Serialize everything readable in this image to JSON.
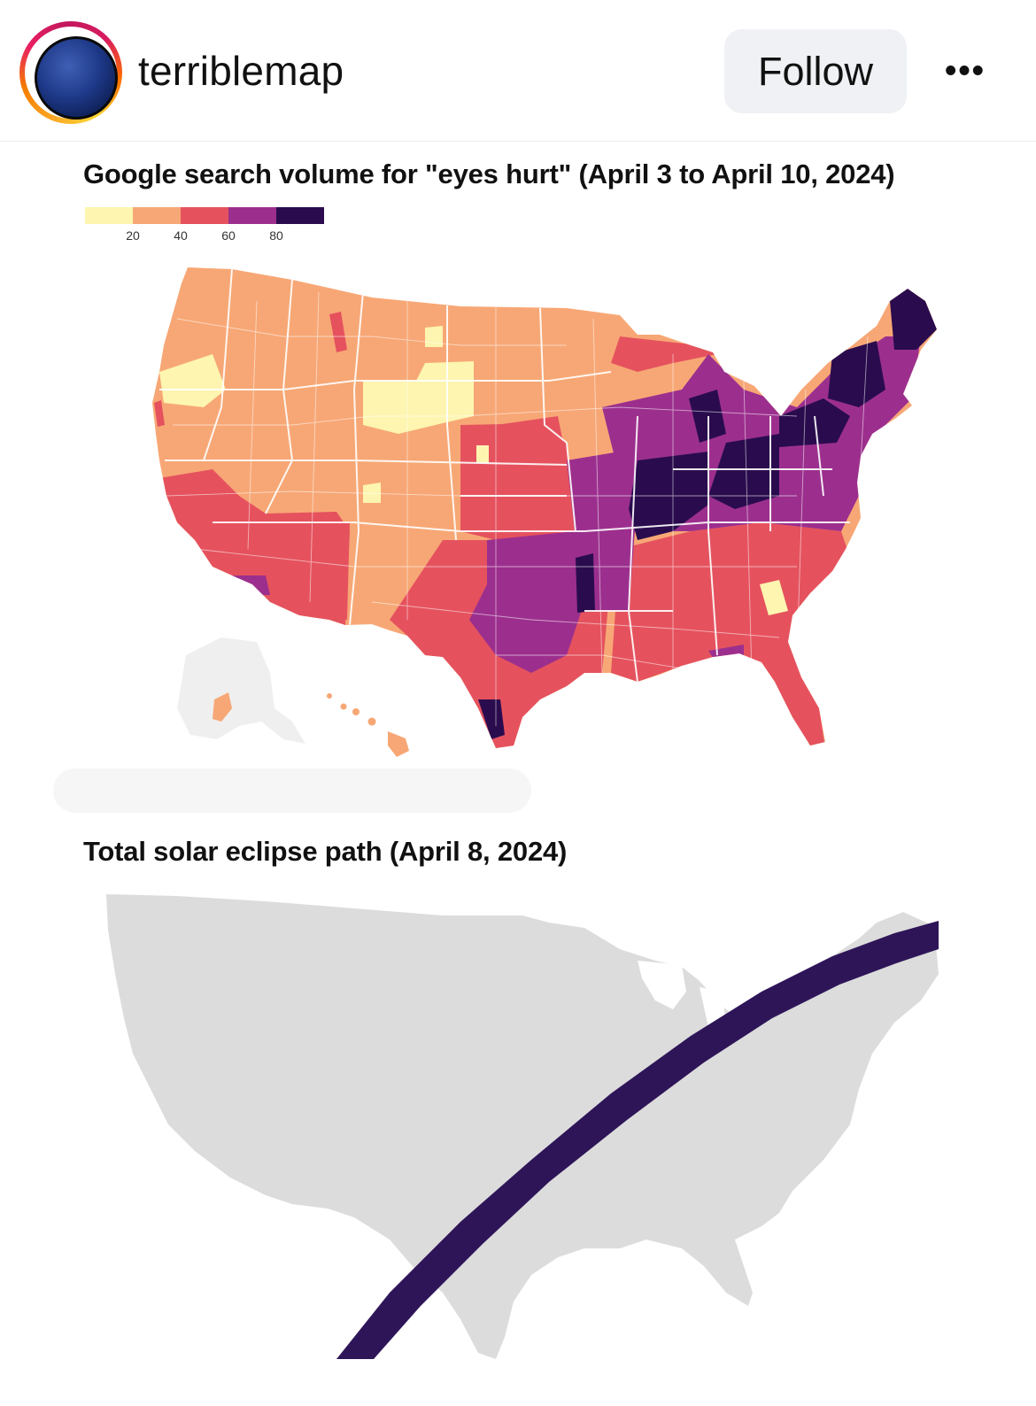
{
  "post": {
    "username": "terriblemap",
    "follow_label": "Follow",
    "more_label": "•••"
  },
  "map_search": {
    "title": "Google search volume for \"eyes hurt\" (April 3 to April 10, 2024)",
    "legend": {
      "ticks": [
        "20",
        "40",
        "60",
        "80"
      ],
      "colors": [
        "#fdf5b0",
        "#f7a775",
        "#e5525e",
        "#9c2f8e",
        "#5e1a7a",
        "#2a0c4e"
      ]
    },
    "palette": {
      "very_low": "#fdf5b0",
      "low": "#f7a775",
      "medium": "#e5525e",
      "high": "#9c2f8e",
      "very_high": "#2a0c4e"
    }
  },
  "map_eclipse": {
    "title": "Total solar eclipse path (April 8, 2024)",
    "land_color": "#dcdcdc",
    "path_color": "#2e1558"
  }
}
